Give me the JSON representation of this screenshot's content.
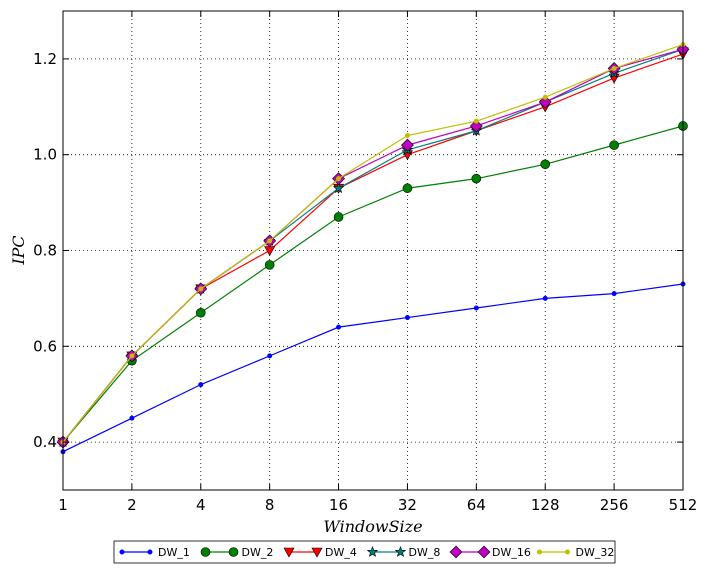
{
  "chart_data": {
    "type": "line",
    "title": "",
    "xlabel": "WindowSize",
    "ylabel": "IPC",
    "x_scale": "log2",
    "categories": [
      "1",
      "2",
      "4",
      "8",
      "16",
      "32",
      "64",
      "128",
      "256",
      "512"
    ],
    "x": [
      1,
      2,
      4,
      8,
      16,
      32,
      64,
      128,
      256,
      512
    ],
    "ylim": [
      0.3,
      1.3
    ],
    "y_ticks": [
      0.4,
      0.6,
      0.8,
      1.0,
      1.2
    ],
    "y_tick_labels": [
      "0.4",
      "0.6",
      "0.8",
      "1.0",
      "1.2"
    ],
    "grid": true,
    "legend_position": "bottom-center",
    "series": [
      {
        "name": "DW_1",
        "color": "#0000ff",
        "marker": "point",
        "values": [
          0.38,
          0.45,
          0.52,
          0.58,
          0.64,
          0.66,
          0.68,
          0.7,
          0.71,
          0.73
        ]
      },
      {
        "name": "DW_2",
        "color": "#008000",
        "marker": "circle",
        "values": [
          0.4,
          0.57,
          0.67,
          0.77,
          0.87,
          0.93,
          0.95,
          0.98,
          1.02,
          1.06
        ]
      },
      {
        "name": "DW_4",
        "color": "#ff0000",
        "marker": "triangle-down",
        "values": [
          0.4,
          0.58,
          0.72,
          0.8,
          0.93,
          1.0,
          1.05,
          1.1,
          1.16,
          1.21
        ]
      },
      {
        "name": "DW_8",
        "color": "#008080",
        "marker": "star",
        "values": [
          0.4,
          0.58,
          0.72,
          0.82,
          0.93,
          1.01,
          1.05,
          1.11,
          1.17,
          1.22
        ]
      },
      {
        "name": "DW_16",
        "color": "#bf00bf",
        "marker": "diamond",
        "values": [
          0.4,
          0.58,
          0.72,
          0.82,
          0.95,
          1.02,
          1.06,
          1.11,
          1.18,
          1.22
        ]
      },
      {
        "name": "DW_32",
        "color": "#bfbf00",
        "marker": "point",
        "values": [
          0.4,
          0.58,
          0.72,
          0.82,
          0.95,
          1.04,
          1.07,
          1.12,
          1.18,
          1.23
        ]
      }
    ]
  }
}
